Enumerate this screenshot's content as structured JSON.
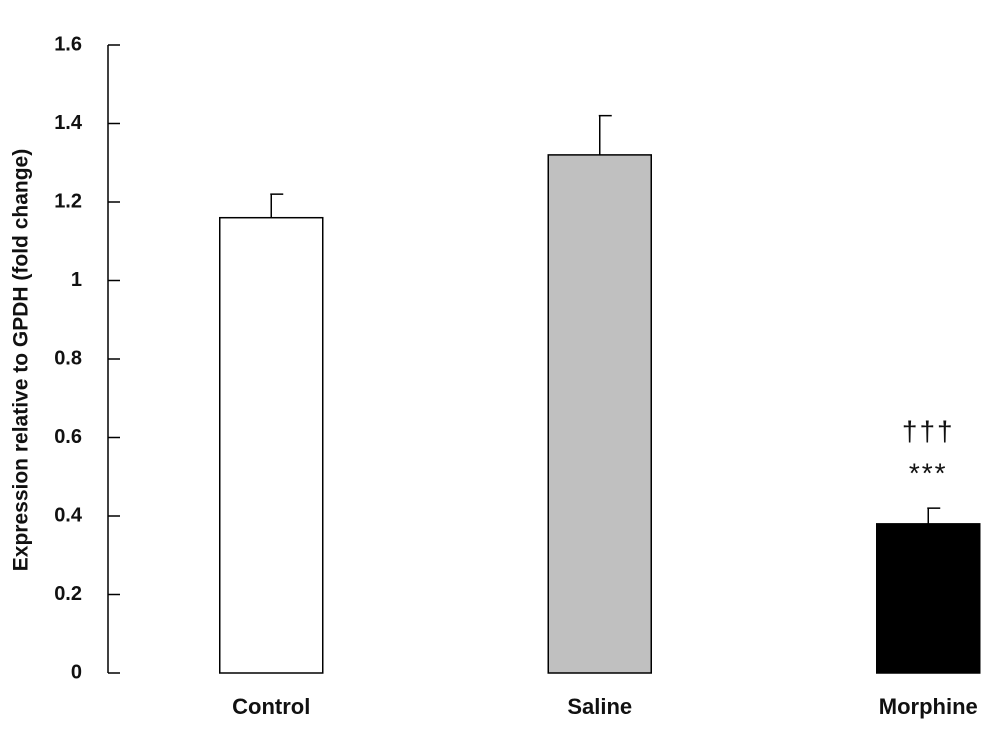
{
  "chart_data": {
    "type": "bar",
    "y_label": "Expression relative to GPDH (fold change)",
    "categories": [
      "Control",
      "Saline",
      "Morphine"
    ],
    "values": [
      1.16,
      1.32,
      0.38
    ],
    "errors": [
      0.06,
      0.1,
      0.04
    ],
    "colors": [
      "#ffffff",
      "#c0c0c0",
      "#000000"
    ],
    "annotations": [
      "†††",
      "***"
    ],
    "ylim": [
      0,
      1.6
    ],
    "yticks": [
      0,
      0.2,
      0.4,
      0.6,
      0.8,
      1,
      1.2,
      1.4,
      1.6
    ],
    "grid": false
  }
}
